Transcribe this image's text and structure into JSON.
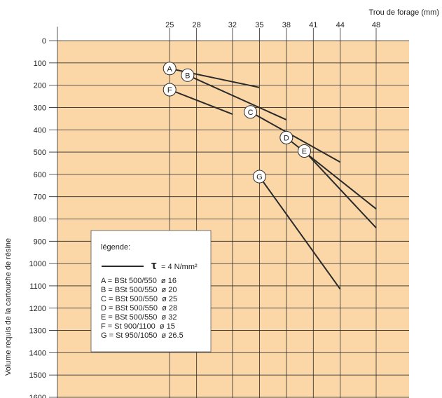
{
  "chart_data": {
    "type": "line",
    "x_axis_title": "Trou de forage (mm)",
    "y_axis_title": "Volume requis de la cartouche de résine",
    "x_ticks": [
      25,
      28,
      32,
      35,
      38,
      41,
      44,
      48
    ],
    "y_ticks": [
      0,
      100,
      200,
      300,
      400,
      500,
      600,
      700,
      800,
      900,
      1000,
      1100,
      1200,
      1300,
      1400,
      1500,
      1600
    ],
    "xlim": [
      12.5,
      48
    ],
    "ylim": [
      0,
      1600
    ],
    "grid": true,
    "background_color": "#fbd7a8",
    "line_color": "#2a2a2a",
    "series": [
      {
        "label": "A",
        "points": [
          [
            25,
            125
          ],
          [
            35,
            210
          ]
        ]
      },
      {
        "label": "B",
        "points": [
          [
            27,
            155
          ],
          [
            38,
            355
          ]
        ]
      },
      {
        "label": "C",
        "points": [
          [
            34,
            320
          ],
          [
            44,
            545
          ]
        ]
      },
      {
        "label": "D",
        "points": [
          [
            38,
            435
          ],
          [
            48,
            755
          ]
        ]
      },
      {
        "label": "E",
        "points": [
          [
            40,
            495
          ],
          [
            48,
            840
          ]
        ]
      },
      {
        "label": "F",
        "points": [
          [
            25,
            220
          ],
          [
            32,
            330
          ]
        ]
      },
      {
        "label": "G",
        "points": [
          [
            35,
            610
          ],
          [
            44,
            1115
          ]
        ]
      }
    ],
    "legend": {
      "title": "légende:",
      "line_label_symbol": "τ",
      "line_label_value": "= 4 N/mm²",
      "entries": [
        "A = BSt 500/550  ø 16",
        "B = BSt 500/550  ø 20",
        "C = BSt 500/550  ø 25",
        "D = BSt 500/550  ø 28",
        "E = BSt 500/550  ø 32",
        "F = St 900/1100  ø 15",
        "G = St 950/1050  ø 26.5"
      ]
    }
  }
}
